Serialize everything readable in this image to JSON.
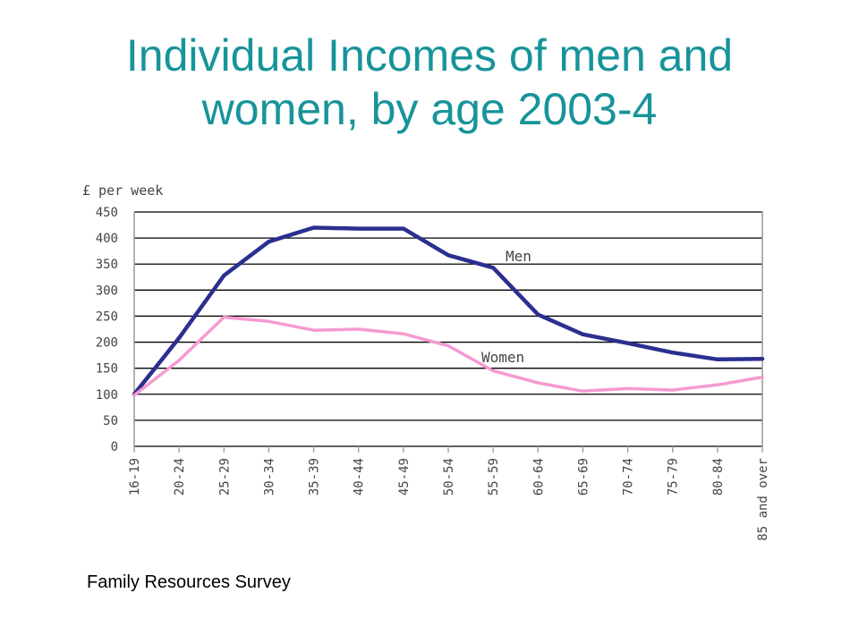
{
  "title_line1": "Individual Incomes of men and",
  "title_line2": "women, by age 2003-4",
  "source": "Family Resources Survey",
  "colors": {
    "title": "#17949a",
    "men": "#2b2f8f",
    "women": "#f59ad0",
    "grid": "#000000",
    "frame": "#9a9a9a"
  },
  "chart_data": {
    "type": "line",
    "title": "Individual Incomes of men and women, by age 2003-4",
    "ylabel": "£ per week",
    "xlabel": "",
    "ylim": [
      0,
      450
    ],
    "yticks": [
      0,
      50,
      100,
      150,
      200,
      250,
      300,
      350,
      400,
      450
    ],
    "grid": true,
    "categories": [
      "16-19",
      "20-24",
      "25-29",
      "30-34",
      "35-39",
      "40-44",
      "45-49",
      "50-54",
      "55-59",
      "60-64",
      "65-69",
      "70-74",
      "75-79",
      "80-84",
      "85 and over"
    ],
    "series": [
      {
        "name": "Men",
        "values": [
          100,
          208,
          328,
          393,
          420,
          418,
          418,
          367,
          343,
          253,
          215,
          198,
          180,
          167,
          168
        ]
      },
      {
        "name": "Women",
        "values": [
          98,
          165,
          248,
          240,
          223,
          225,
          216,
          193,
          145,
          122,
          106,
          111,
          108,
          118,
          133
        ]
      }
    ]
  }
}
